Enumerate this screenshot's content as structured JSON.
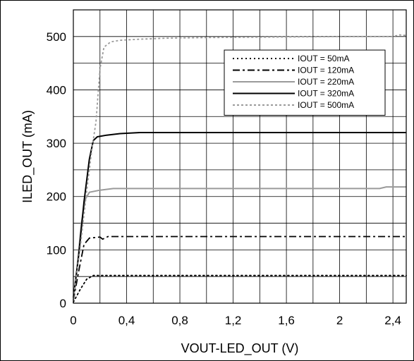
{
  "chart_data": {
    "type": "line",
    "title": "",
    "xlabel": "VOUT-LED_OUT (V)",
    "ylabel": "ILED_OUT (mA)",
    "xlim": [
      0,
      2.5
    ],
    "ylim": [
      0,
      550
    ],
    "x_ticks": [
      0,
      0.4,
      0.8,
      1.2,
      1.6,
      2,
      2.4
    ],
    "x_tick_labels": [
      "0",
      "0,4",
      "0,8",
      "1,2",
      "1,6",
      "2",
      "2,4"
    ],
    "y_ticks": [
      0,
      100,
      200,
      300,
      400,
      500
    ],
    "y_tick_labels": [
      "0",
      "100",
      "200",
      "300",
      "400",
      "500"
    ],
    "grid": true,
    "legend_position": "top-right",
    "series": [
      {
        "name": "IOUT = 50mA",
        "style": "dotted",
        "color": "#000000",
        "points": [
          [
            0,
            2
          ],
          [
            0.05,
            25
          ],
          [
            0.1,
            45
          ],
          [
            0.15,
            52
          ],
          [
            0.2,
            52
          ],
          [
            0.5,
            52
          ],
          [
            1.0,
            52
          ],
          [
            1.5,
            52
          ],
          [
            2.0,
            52
          ],
          [
            2.5,
            52
          ]
        ]
      },
      {
        "name": "IOUT = 120mA",
        "style": "dash-dot",
        "color": "#000000",
        "points": [
          [
            0,
            5
          ],
          [
            0.04,
            60
          ],
          [
            0.08,
            110
          ],
          [
            0.12,
            122
          ],
          [
            0.2,
            124
          ],
          [
            0.22,
            120
          ],
          [
            0.26,
            125
          ],
          [
            0.5,
            125
          ],
          [
            1.0,
            125
          ],
          [
            1.5,
            125
          ],
          [
            2.0,
            125
          ],
          [
            2.5,
            125
          ]
        ]
      },
      {
        "name": "IOUT = 220mA",
        "style": "solid",
        "color": "#9a9a9a",
        "points": [
          [
            0,
            5
          ],
          [
            0.03,
            70
          ],
          [
            0.06,
            150
          ],
          [
            0.09,
            195
          ],
          [
            0.12,
            208
          ],
          [
            0.2,
            212
          ],
          [
            0.3,
            215
          ],
          [
            0.5,
            215
          ],
          [
            1.0,
            215
          ],
          [
            1.5,
            215
          ],
          [
            2.0,
            215
          ],
          [
            2.3,
            215
          ],
          [
            2.35,
            218
          ],
          [
            2.5,
            218
          ]
        ]
      },
      {
        "name": "IOUT = 320mA",
        "style": "solid",
        "color": "#000000",
        "points": [
          [
            0,
            10
          ],
          [
            0.04,
            90
          ],
          [
            0.08,
            190
          ],
          [
            0.12,
            270
          ],
          [
            0.15,
            305
          ],
          [
            0.18,
            312
          ],
          [
            0.25,
            315
          ],
          [
            0.35,
            318
          ],
          [
            0.5,
            320
          ],
          [
            1.0,
            320
          ],
          [
            1.5,
            320
          ],
          [
            2.0,
            320
          ],
          [
            2.5,
            320
          ]
        ]
      },
      {
        "name": "IOUT = 500mA",
        "style": "dashed",
        "color": "#9a9a9a",
        "points": [
          [
            0,
            10
          ],
          [
            0.05,
            100
          ],
          [
            0.1,
            210
          ],
          [
            0.14,
            290
          ],
          [
            0.17,
            340
          ],
          [
            0.2,
            440
          ],
          [
            0.23,
            480
          ],
          [
            0.28,
            490
          ],
          [
            0.35,
            493
          ],
          [
            0.5,
            495
          ],
          [
            0.7,
            497
          ],
          [
            1.0,
            498
          ],
          [
            1.5,
            499
          ],
          [
            2.0,
            500
          ],
          [
            2.4,
            500
          ],
          [
            2.45,
            503
          ],
          [
            2.5,
            502
          ]
        ]
      }
    ]
  }
}
